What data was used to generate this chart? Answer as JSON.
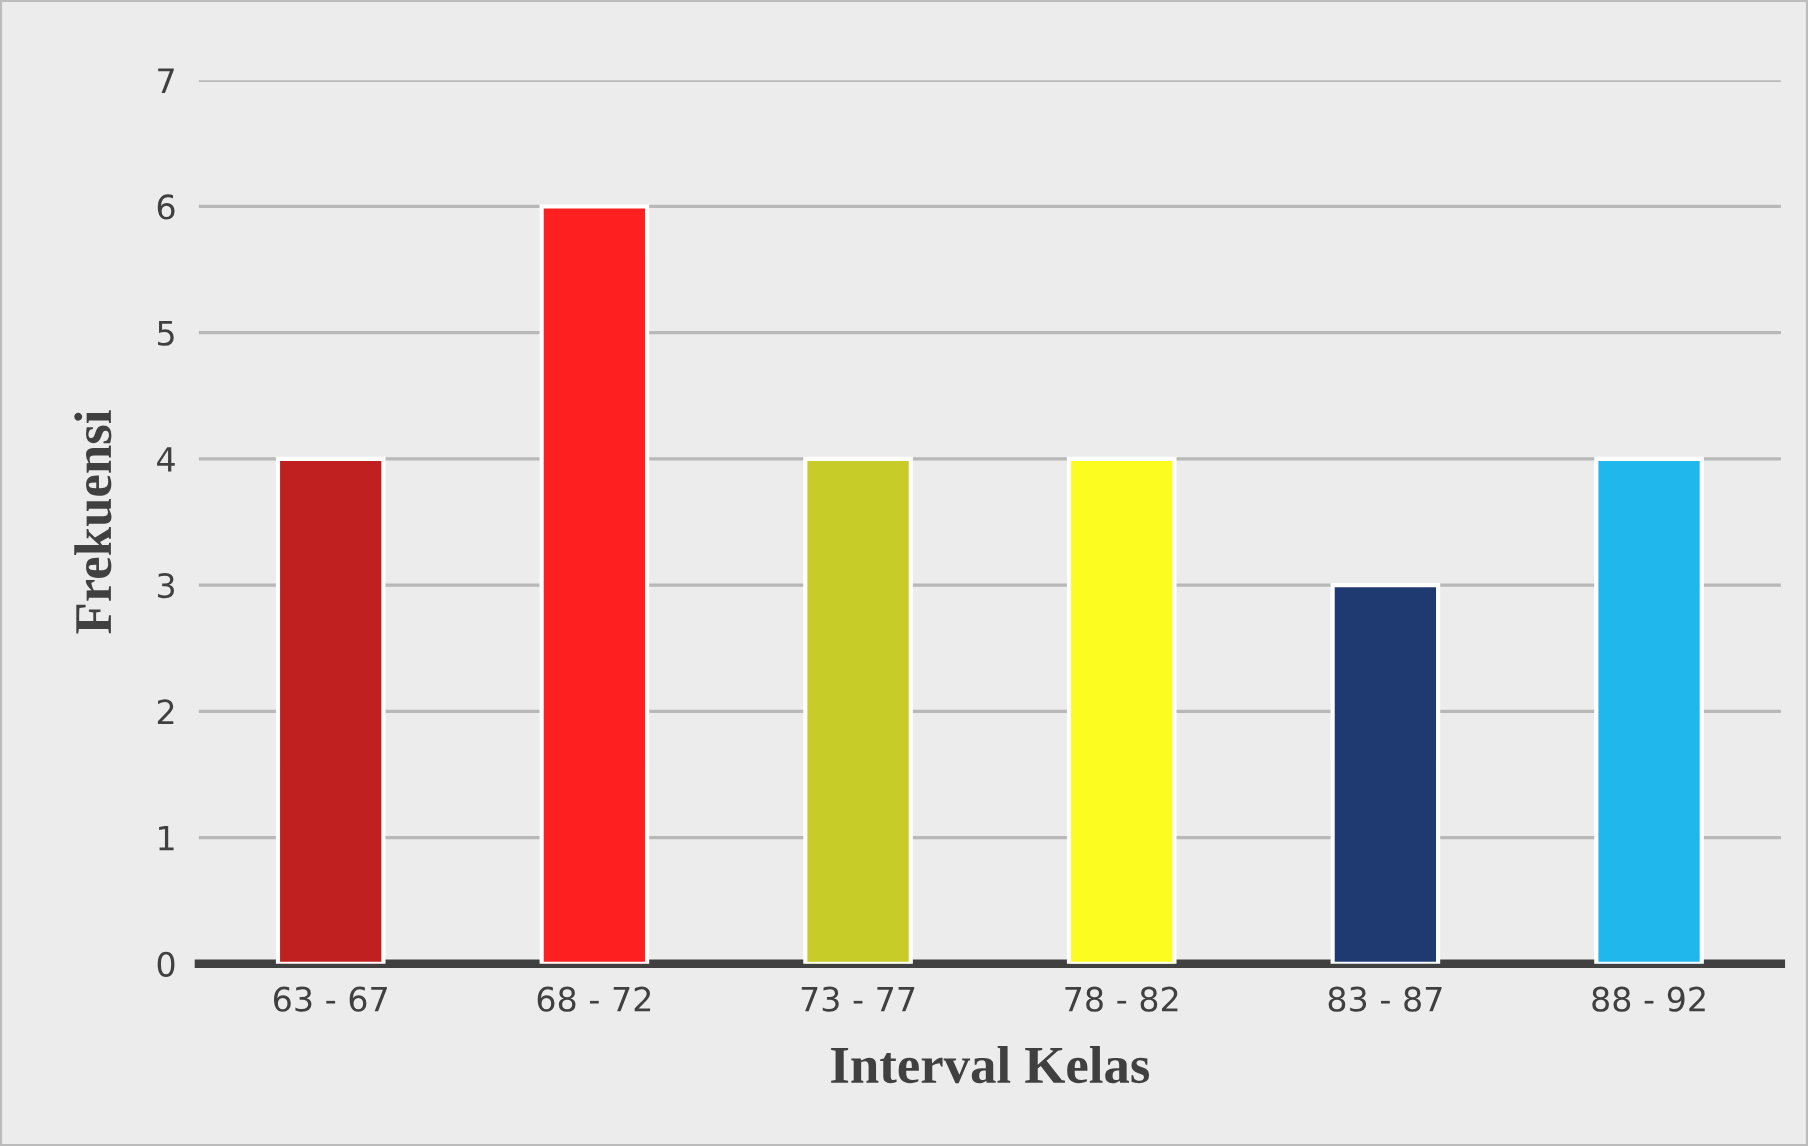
{
  "chart_data": {
    "type": "bar",
    "xlabel": "Interval Kelas",
    "ylabel": "Frekuensi",
    "categories": [
      "63 - 67",
      "68 - 72",
      "73 - 77",
      "78 - 82",
      "83 - 87",
      "88 - 92"
    ],
    "values": [
      4,
      6,
      4,
      4,
      3,
      4
    ],
    "colors": [
      "#c0201f",
      "#fe2020",
      "#c8cc28",
      "#fcfc20",
      "#1f3a70",
      "#20b8ec"
    ],
    "ylim": [
      0,
      7
    ],
    "yticks": [
      0,
      1,
      2,
      3,
      4,
      5,
      6,
      7
    ],
    "grid": "y",
    "legend": false
  }
}
